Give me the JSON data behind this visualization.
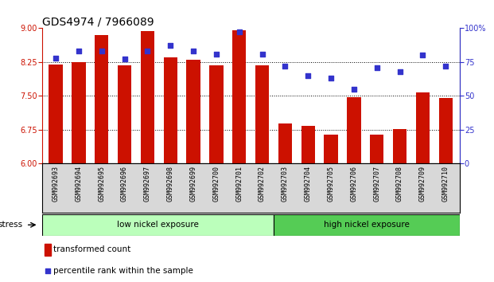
{
  "title": "GDS4974 / 7966089",
  "samples": [
    "GSM992693",
    "GSM992694",
    "GSM992695",
    "GSM992696",
    "GSM992697",
    "GSM992698",
    "GSM992699",
    "GSM992700",
    "GSM992701",
    "GSM992702",
    "GSM992703",
    "GSM992704",
    "GSM992705",
    "GSM992706",
    "GSM992707",
    "GSM992708",
    "GSM992709",
    "GSM992710"
  ],
  "bar_values": [
    8.19,
    8.25,
    8.85,
    8.17,
    8.93,
    8.35,
    8.3,
    8.18,
    8.95,
    8.18,
    6.88,
    6.83,
    6.65,
    7.47,
    6.65,
    6.77,
    7.57,
    7.45
  ],
  "blue_values": [
    78,
    83,
    83,
    77,
    83,
    87,
    83,
    81,
    97,
    81,
    72,
    65,
    63,
    55,
    71,
    68,
    80,
    72
  ],
  "bar_color": "#cc1100",
  "blue_color": "#3333cc",
  "ylim_left": [
    6,
    9
  ],
  "ylim_right": [
    0,
    100
  ],
  "yticks_left": [
    6,
    6.75,
    7.5,
    8.25,
    9
  ],
  "yticks_right": [
    0,
    25,
    50,
    75,
    100
  ],
  "yticklabels_right": [
    "0",
    "25",
    "50",
    "75",
    "100%"
  ],
  "hlines": [
    6.75,
    7.5,
    8.25
  ],
  "group1_label": "low nickel exposure",
  "group1_count": 10,
  "group2_label": "high nickel exposure",
  "group2_count": 8,
  "group1_color": "#bbffbb",
  "group2_color": "#55cc55",
  "stress_label": "stress",
  "legend_bar_label": "transformed count",
  "legend_blue_label": "percentile rank within the sample",
  "bar_width": 0.6,
  "title_fontsize": 10,
  "tick_fontsize": 7,
  "sample_fontsize": 6
}
